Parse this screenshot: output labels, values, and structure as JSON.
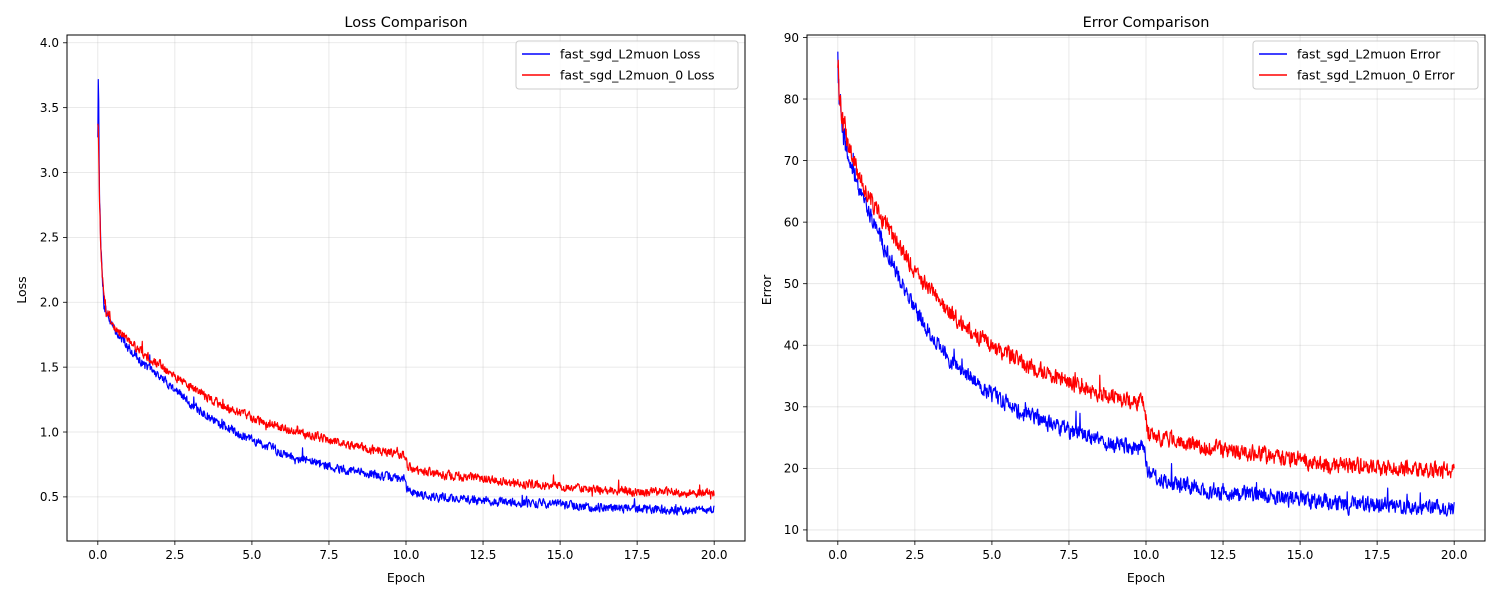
{
  "chart_data": [
    {
      "type": "line",
      "title": "Loss Comparison",
      "xlabel": "Epoch",
      "ylabel": "Loss",
      "xlim": [
        -1,
        21
      ],
      "ylim": [
        0.16,
        4.06
      ],
      "xticks": [
        0.0,
        2.5,
        5.0,
        7.5,
        10.0,
        12.5,
        15.0,
        17.5,
        20.0
      ],
      "xtick_labels": [
        "0.0",
        "2.5",
        "5.0",
        "7.5",
        "10.0",
        "12.5",
        "15.0",
        "17.5",
        "20.0"
      ],
      "yticks": [
        0.5,
        1.0,
        1.5,
        2.0,
        2.5,
        3.0,
        3.5,
        4.0
      ],
      "ytick_labels": [
        "0.5",
        "1.0",
        "1.5",
        "2.0",
        "2.5",
        "3.0",
        "3.5",
        "4.0"
      ],
      "grid": true,
      "legend_position": "top-right",
      "series": [
        {
          "name": "fast_sgd_L2muon Loss",
          "color": "#0000ff",
          "x": [
            0,
            0.02,
            0.05,
            0.1,
            0.2,
            0.35,
            0.5,
            0.75,
            1.0,
            1.5,
            2.0,
            2.5,
            3.0,
            3.5,
            4.0,
            4.5,
            5.0,
            5.5,
            6.0,
            6.5,
            7.0,
            7.5,
            8.0,
            8.5,
            9.0,
            9.5,
            9.95,
            10.05,
            10.5,
            11.0,
            11.5,
            12.0,
            12.5,
            13.0,
            13.5,
            14.0,
            14.5,
            15.0,
            15.5,
            16.0,
            16.5,
            17.0,
            17.5,
            18.0,
            18.5,
            19.0,
            19.5,
            20.0
          ],
          "y": [
            3.3,
            3.88,
            2.9,
            2.4,
            2.0,
            1.88,
            1.8,
            1.72,
            1.65,
            1.52,
            1.43,
            1.33,
            1.22,
            1.13,
            1.06,
            1.0,
            0.94,
            0.89,
            0.84,
            0.8,
            0.77,
            0.74,
            0.71,
            0.69,
            0.67,
            0.65,
            0.64,
            0.55,
            0.52,
            0.5,
            0.49,
            0.48,
            0.47,
            0.46,
            0.46,
            0.45,
            0.45,
            0.44,
            0.43,
            0.42,
            0.42,
            0.41,
            0.41,
            0.41,
            0.4,
            0.4,
            0.4,
            0.4
          ]
        },
        {
          "name": "fast_sgd_L2muon_0 Loss",
          "color": "#ff0000",
          "x": [
            0,
            0.02,
            0.05,
            0.1,
            0.2,
            0.35,
            0.5,
            0.75,
            1.0,
            1.5,
            2.0,
            2.5,
            3.0,
            3.5,
            4.0,
            4.5,
            5.0,
            5.5,
            6.0,
            6.5,
            7.0,
            7.5,
            8.0,
            8.5,
            9.0,
            9.5,
            9.95,
            10.05,
            10.5,
            11.0,
            11.5,
            12.0,
            12.5,
            13.0,
            13.5,
            14.0,
            14.5,
            15.0,
            15.5,
            16.0,
            16.5,
            17.0,
            17.5,
            18.0,
            18.5,
            19.0,
            19.5,
            20.0
          ],
          "y": [
            3.4,
            3.3,
            2.8,
            2.4,
            2.0,
            1.9,
            1.83,
            1.76,
            1.7,
            1.6,
            1.52,
            1.43,
            1.35,
            1.28,
            1.21,
            1.16,
            1.11,
            1.07,
            1.03,
            1.0,
            0.97,
            0.94,
            0.91,
            0.88,
            0.86,
            0.84,
            0.82,
            0.73,
            0.7,
            0.68,
            0.66,
            0.65,
            0.64,
            0.62,
            0.61,
            0.6,
            0.59,
            0.58,
            0.57,
            0.56,
            0.55,
            0.55,
            0.54,
            0.54,
            0.54,
            0.53,
            0.53,
            0.53
          ]
        }
      ]
    },
    {
      "type": "line",
      "title": "Error Comparison",
      "xlabel": "Epoch",
      "ylabel": "Error",
      "xlim": [
        -1,
        21
      ],
      "ylim": [
        8.2,
        90.4
      ],
      "xticks": [
        0.0,
        2.5,
        5.0,
        7.5,
        10.0,
        12.5,
        15.0,
        17.5,
        20.0
      ],
      "xtick_labels": [
        "0.0",
        "2.5",
        "5.0",
        "7.5",
        "10.0",
        "12.5",
        "15.0",
        "17.5",
        "20.0"
      ],
      "yticks": [
        10,
        20,
        30,
        40,
        50,
        60,
        70,
        80,
        90
      ],
      "ytick_labels": [
        "10",
        "20",
        "30",
        "40",
        "50",
        "60",
        "70",
        "80",
        "90"
      ],
      "grid": true,
      "legend_position": "top-right",
      "series": [
        {
          "name": "fast_sgd_L2muon Error",
          "color": "#0000ff",
          "x": [
            0,
            0.05,
            0.2,
            0.5,
            1.0,
            1.5,
            2.0,
            2.5,
            3.0,
            3.5,
            4.0,
            4.5,
            5.0,
            5.5,
            6.0,
            6.5,
            7.0,
            7.5,
            8.0,
            8.5,
            9.0,
            9.5,
            9.95,
            10.05,
            10.5,
            11.0,
            11.5,
            12.0,
            12.5,
            13.0,
            13.5,
            14.0,
            14.5,
            15.0,
            15.5,
            16.0,
            16.5,
            17.0,
            17.5,
            18.0,
            18.5,
            19.0,
            19.5,
            20.0
          ],
          "y": [
            85,
            80,
            73,
            68,
            62,
            56,
            51,
            46,
            42,
            38.5,
            36,
            34,
            32,
            30.5,
            29,
            28,
            27,
            26,
            25.5,
            24.5,
            24,
            23.5,
            23,
            19,
            18,
            17.5,
            17,
            16.5,
            16,
            16,
            15.5,
            15.5,
            15,
            15,
            14.5,
            14.5,
            14,
            14,
            14,
            14,
            13.8,
            13.8,
            13.6,
            13.5
          ]
        },
        {
          "name": "fast_sgd_L2muon_0 Error",
          "color": "#ff0000",
          "x": [
            0,
            0.05,
            0.2,
            0.5,
            1.0,
            1.5,
            2.0,
            2.5,
            3.0,
            3.5,
            4.0,
            4.5,
            5.0,
            5.5,
            6.0,
            6.5,
            7.0,
            7.5,
            8.0,
            8.5,
            9.0,
            9.5,
            9.95,
            10.05,
            10.5,
            11.0,
            11.5,
            12.0,
            12.5,
            13.0,
            13.5,
            14.0,
            14.5,
            15.0,
            15.5,
            16.0,
            16.5,
            17.0,
            17.5,
            18.0,
            18.5,
            19.0,
            19.5,
            20.0
          ],
          "y": [
            86,
            81,
            75,
            70,
            64,
            60,
            56,
            52,
            49,
            46,
            43.5,
            41.5,
            40,
            38.5,
            37,
            36,
            35,
            34,
            33,
            32,
            31.5,
            31,
            30.5,
            26,
            25,
            24.5,
            24,
            23.5,
            23,
            22.5,
            22.5,
            22,
            21.5,
            21.5,
            21,
            20.5,
            20.5,
            20.5,
            20,
            20,
            20,
            19.8,
            19.8,
            19.5
          ]
        }
      ]
    }
  ]
}
